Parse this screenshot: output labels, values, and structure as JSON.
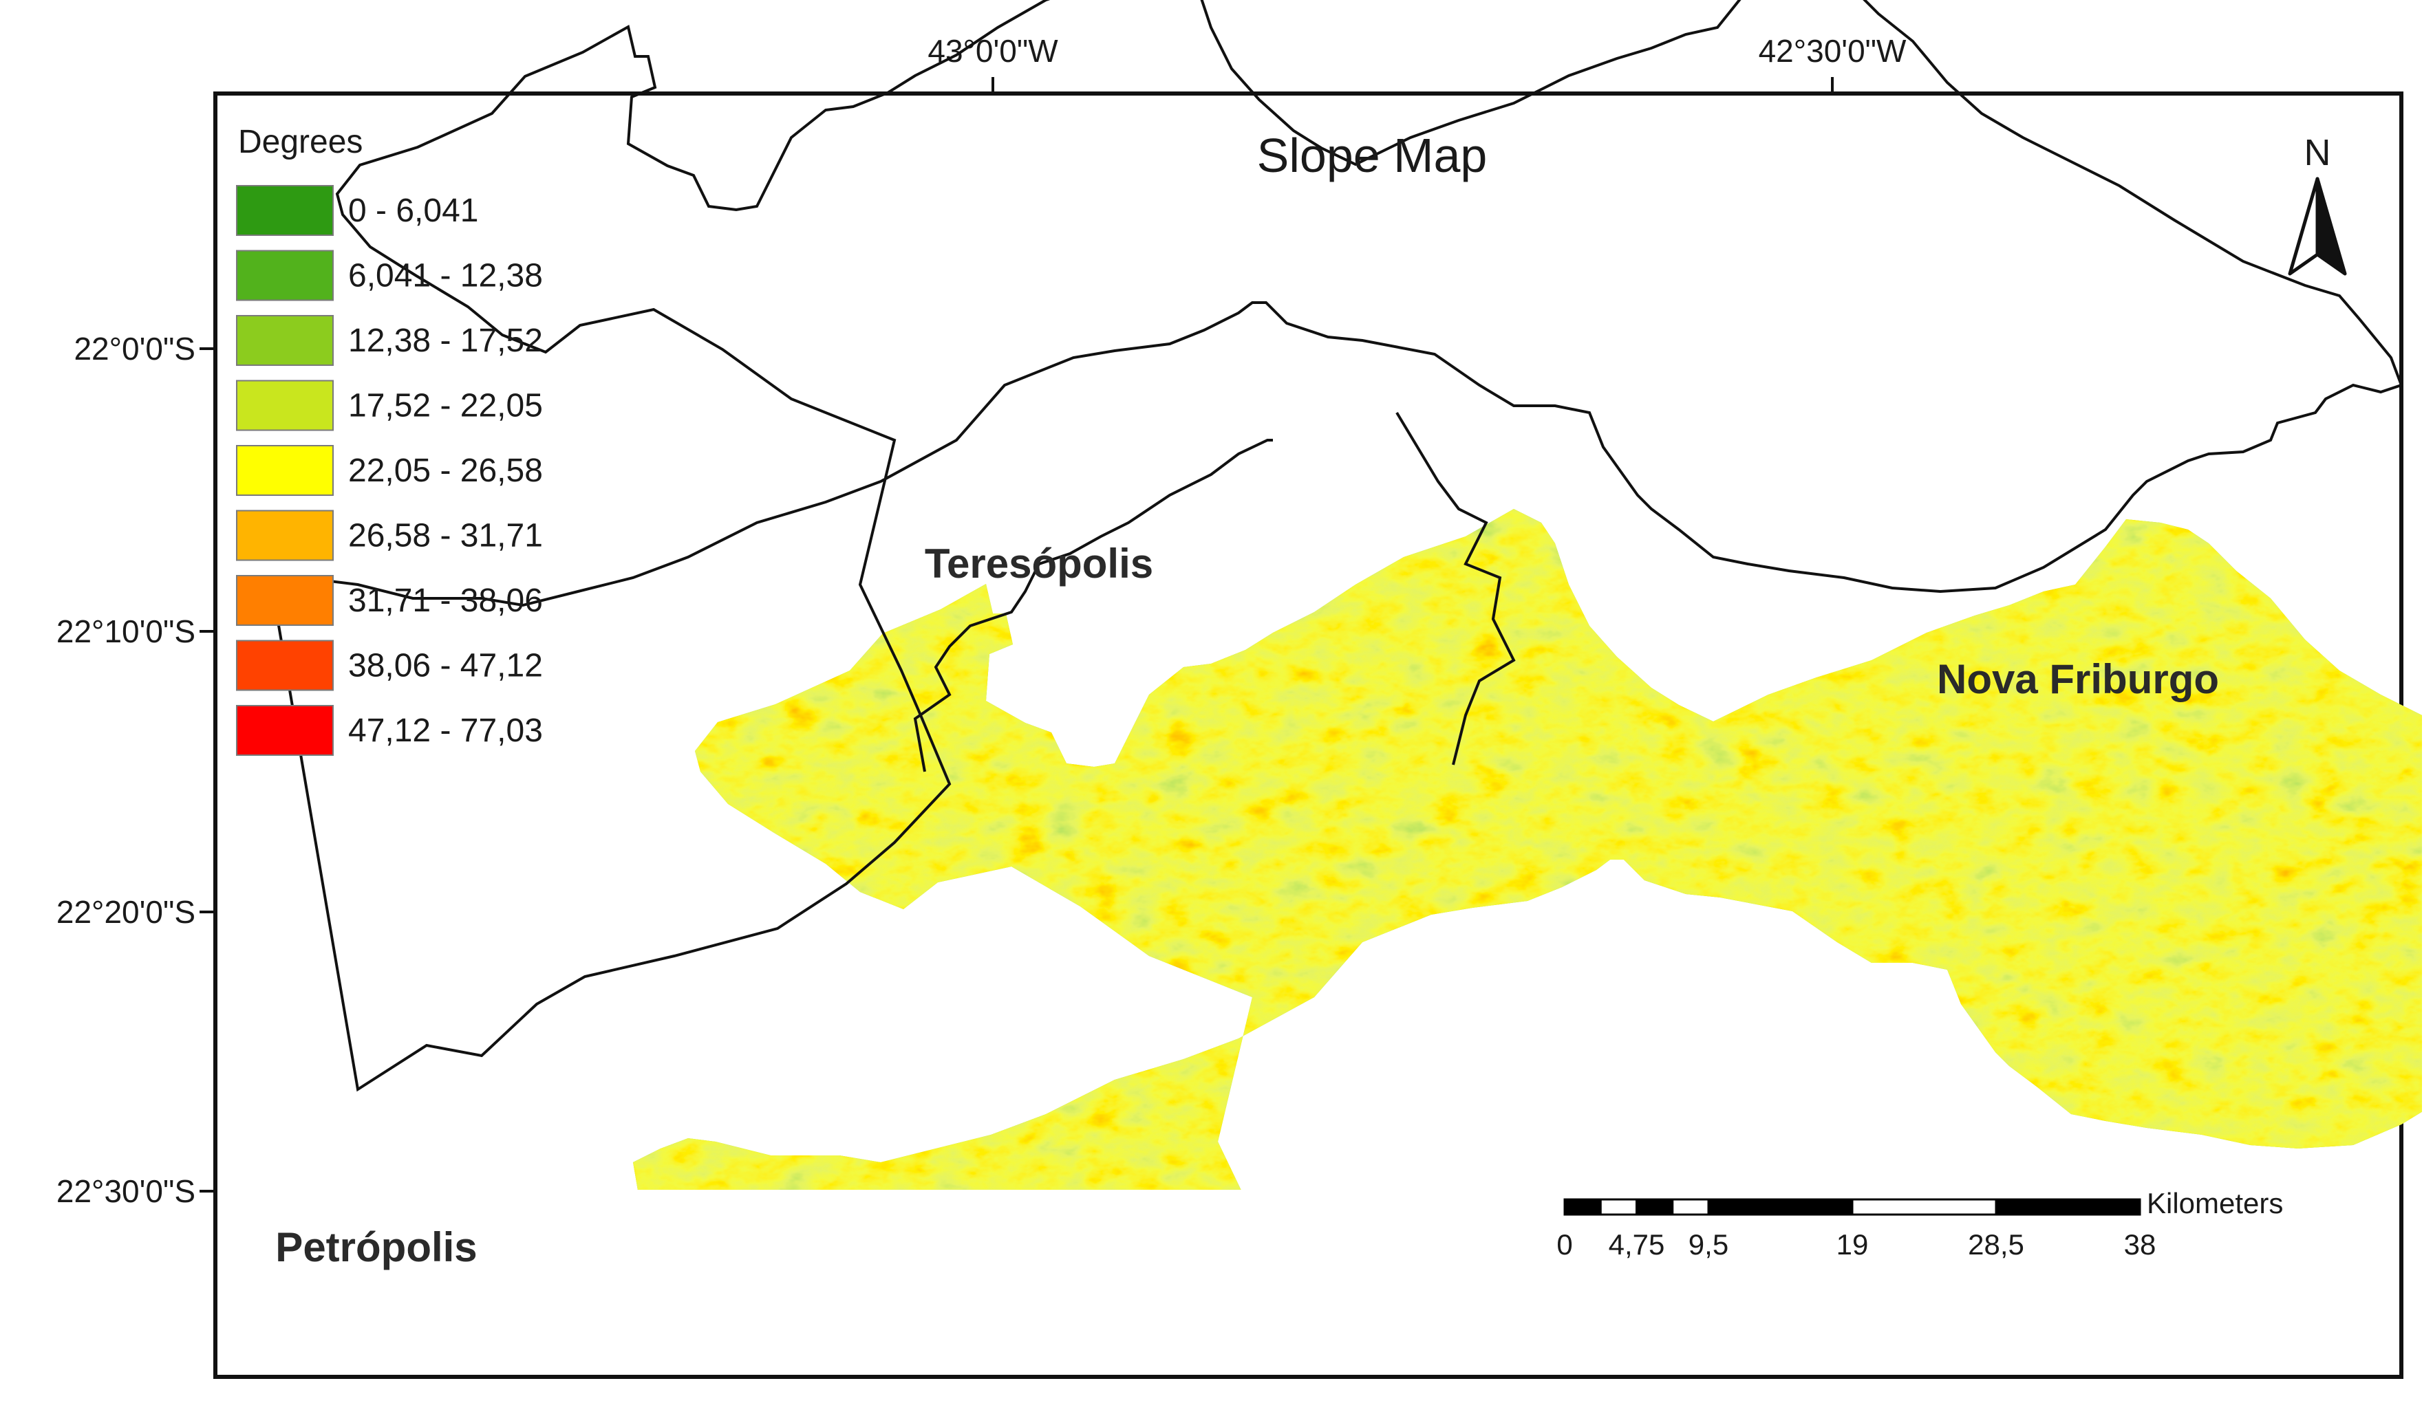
{
  "map": {
    "title": "Slope Map",
    "north_label": "N",
    "longitude_ticks": [
      "43°0'0\"W",
      "42°30'0\"W"
    ],
    "latitude_ticks": [
      "22°0'0\"S",
      "22°10'0\"S",
      "22°20'0\"S",
      "22°30'0\"S"
    ],
    "places": [
      "Teresópolis",
      "Nova Friburgo",
      "Petrópolis"
    ]
  },
  "legend": {
    "title": "Degrees",
    "classes": [
      {
        "label": "0 - 6,041",
        "color": "#2e9a12"
      },
      {
        "label": "6,041  - 12,38",
        "color": "#52b21c"
      },
      {
        "label": "12,38  - 17,52",
        "color": "#8ccc1e"
      },
      {
        "label": "17,52  - 22,05",
        "color": "#c9e61e"
      },
      {
        "label": "22,05  - 26,58",
        "color": "#ffff00"
      },
      {
        "label": "26,58  - 31,71",
        "color": "#ffb400"
      },
      {
        "label": "31,71  - 38,06",
        "color": "#ff7f00"
      },
      {
        "label": "38,06  - 47,12",
        "color": "#ff4200"
      },
      {
        "label": "47,12  - 77,03",
        "color": "#ff0000"
      }
    ]
  },
  "scale_bar": {
    "unit": "Kilometers",
    "labels": [
      "0",
      "4,75",
      "9,5",
      "19",
      "28,5",
      "38"
    ]
  }
}
